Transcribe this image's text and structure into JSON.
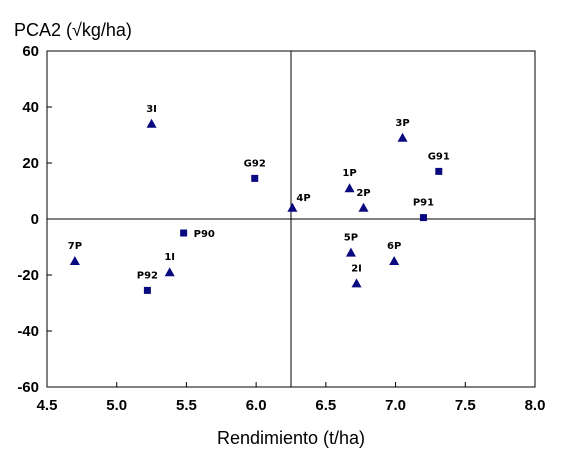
{
  "chart_data": {
    "type": "scatter",
    "title": "",
    "ylabel": "PCA2 (√kg/ha)",
    "xlabel": "Rendimiento (t/ha)",
    "xlim": [
      4.5,
      8.0
    ],
    "ylim": [
      -60,
      60
    ],
    "x_ticks": [
      "4.5",
      "5.0",
      "5.5",
      "6.0",
      "6.5",
      "7.0",
      "7.5",
      "8.0"
    ],
    "y_ticks": [
      "60",
      "40",
      "20",
      "0",
      "-20",
      "-40",
      "-60"
    ],
    "reference_lines": {
      "x": 6.25,
      "y": 0
    },
    "grid": false,
    "legend": "none",
    "colors": {
      "marker": "#0a0a80",
      "axis": "#000000"
    },
    "series": [
      {
        "marker": "triangle",
        "points": [
          {
            "label": "3I",
            "x": 5.25,
            "y": 34
          },
          {
            "label": "7P",
            "x": 4.7,
            "y": -15
          },
          {
            "label": "1I",
            "x": 5.38,
            "y": -19
          },
          {
            "label": "4P",
            "x": 6.26,
            "y": 4
          },
          {
            "label": "1P",
            "x": 6.67,
            "y": 11
          },
          {
            "label": "2P",
            "x": 6.77,
            "y": 4
          },
          {
            "label": "3P",
            "x": 7.05,
            "y": 29
          },
          {
            "label": "5P",
            "x": 6.68,
            "y": -12
          },
          {
            "label": "2I",
            "x": 6.72,
            "y": -23
          },
          {
            "label": "6P",
            "x": 6.99,
            "y": -15
          }
        ]
      },
      {
        "marker": "square",
        "points": [
          {
            "label": "G92",
            "x": 5.99,
            "y": 14.5
          },
          {
            "label": "P90",
            "x": 5.48,
            "y": -5
          },
          {
            "label": "P92",
            "x": 5.22,
            "y": -25.5
          },
          {
            "label": "P91",
            "x": 7.2,
            "y": 0.5
          },
          {
            "label": "G91",
            "x": 7.31,
            "y": 17
          }
        ]
      }
    ]
  }
}
